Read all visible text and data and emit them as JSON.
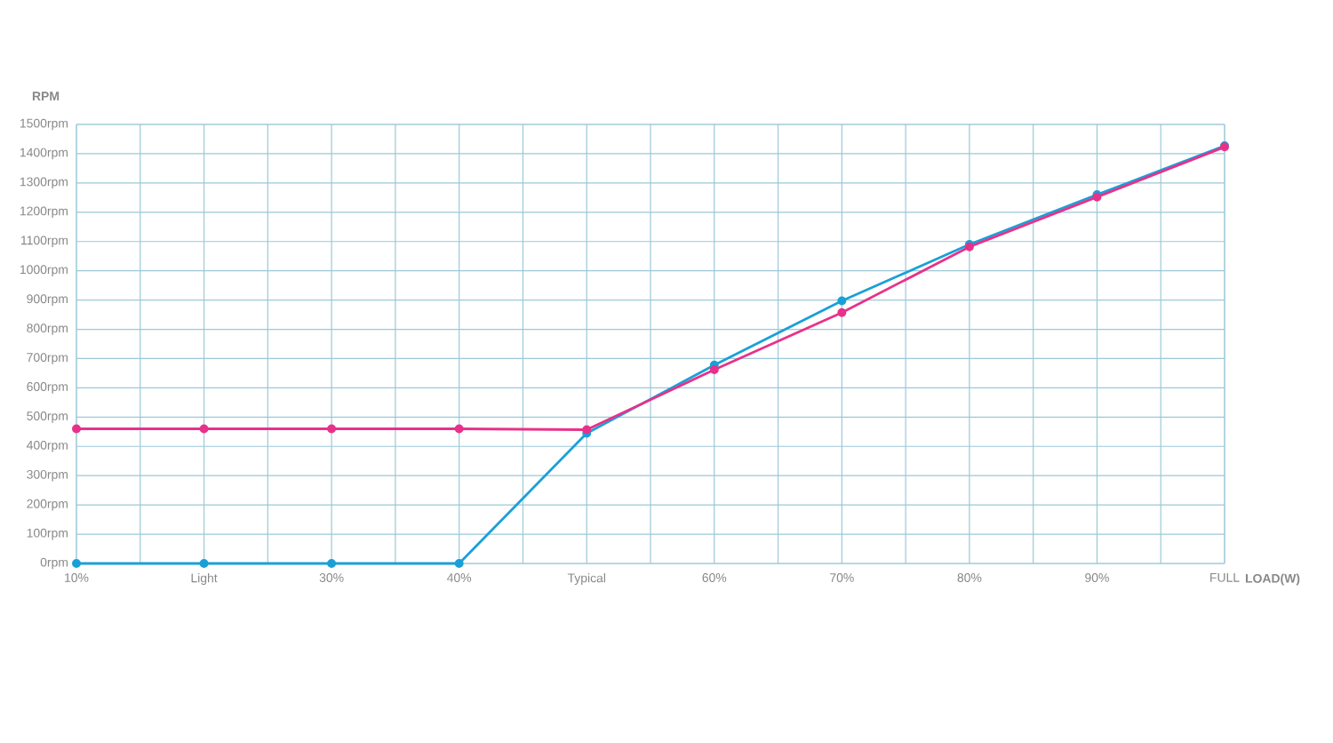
{
  "chart_data": {
    "type": "line",
    "ylabel": "RPM",
    "xlabel": "LOAD(W)",
    "categories": [
      "10%",
      "Light",
      "30%",
      "40%",
      "Typical",
      "60%",
      "70%",
      "80%",
      "90%",
      "FULL"
    ],
    "series": [
      {
        "color": "#e8318a",
        "values": [
          460,
          460,
          460,
          460,
          457,
          662,
          857,
          1082,
          1252,
          1423
        ]
      },
      {
        "color": "#1aa0d8",
        "values": [
          0,
          0,
          0,
          0,
          445,
          678,
          897,
          1090,
          1260,
          1427
        ]
      }
    ],
    "ylim": [
      0,
      1500
    ],
    "yticks": [
      {
        "value": 0,
        "label": "0rpm"
      },
      {
        "value": 100,
        "label": "100rpm"
      },
      {
        "value": 200,
        "label": "200rpm"
      },
      {
        "value": 300,
        "label": "300rpm"
      },
      {
        "value": 400,
        "label": "400rpm"
      },
      {
        "value": 500,
        "label": "500rpm"
      },
      {
        "value": 600,
        "label": "600rpm"
      },
      {
        "value": 700,
        "label": "700rpm"
      },
      {
        "value": 800,
        "label": "800rpm"
      },
      {
        "value": 900,
        "label": "900rpm"
      },
      {
        "value": 1000,
        "label": "1000rpm"
      },
      {
        "value": 1100,
        "label": "1100rpm"
      },
      {
        "value": 1200,
        "label": "1200rpm"
      },
      {
        "value": 1300,
        "label": "1300rpm"
      },
      {
        "value": 1400,
        "label": "1400rpm"
      },
      {
        "value": 1500,
        "label": "1500rpm"
      }
    ],
    "grid": true,
    "marker": "circle",
    "line_style": "solid"
  }
}
